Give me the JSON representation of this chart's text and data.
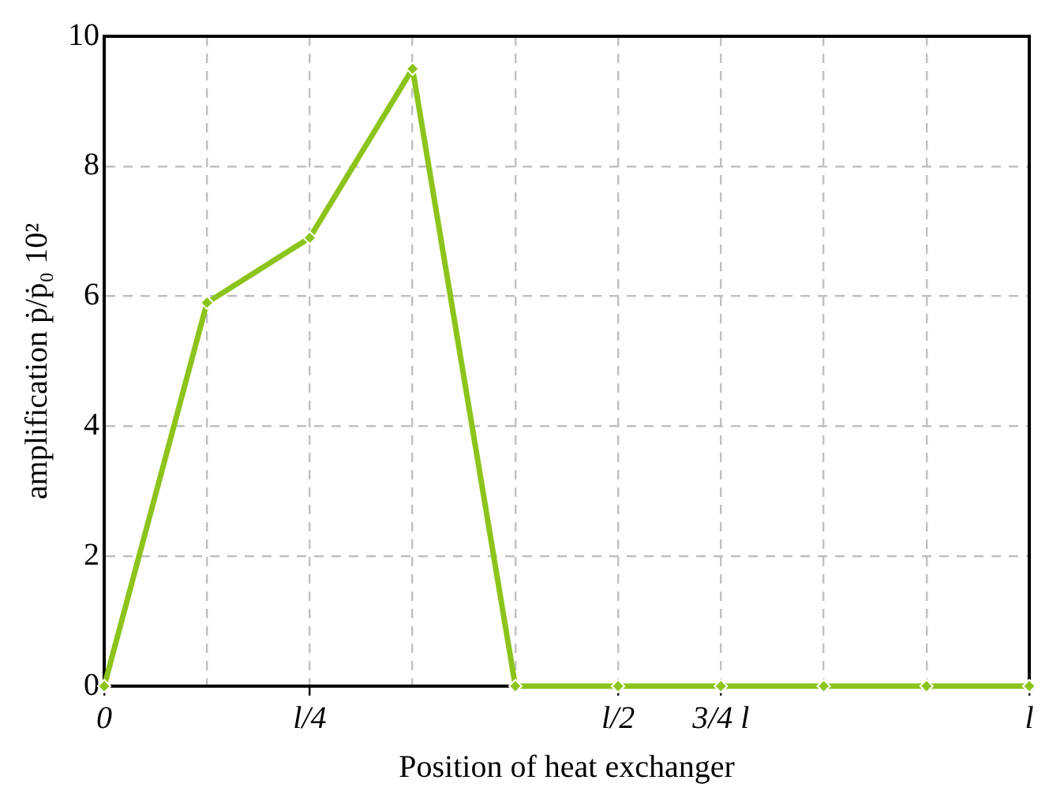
{
  "chart_data": {
    "type": "line",
    "xlabel": "Position of heat exchanger",
    "ylabel": "amplification ṗ/ṗ₀ 10²",
    "categories": [
      "0",
      null,
      "l/4",
      null,
      null,
      "l/2",
      "3/4 l",
      null,
      null,
      "l"
    ],
    "series": [
      {
        "color": "#8cc41c",
        "values": [
          0,
          5.9,
          6.9,
          9.5,
          0,
          0,
          0,
          0,
          0,
          0
        ]
      }
    ],
    "ylim": [
      0,
      10
    ],
    "yticks": [
      0,
      2,
      4,
      6,
      8,
      10
    ],
    "grid": true,
    "marker": "diamond",
    "line_style": "solid"
  }
}
